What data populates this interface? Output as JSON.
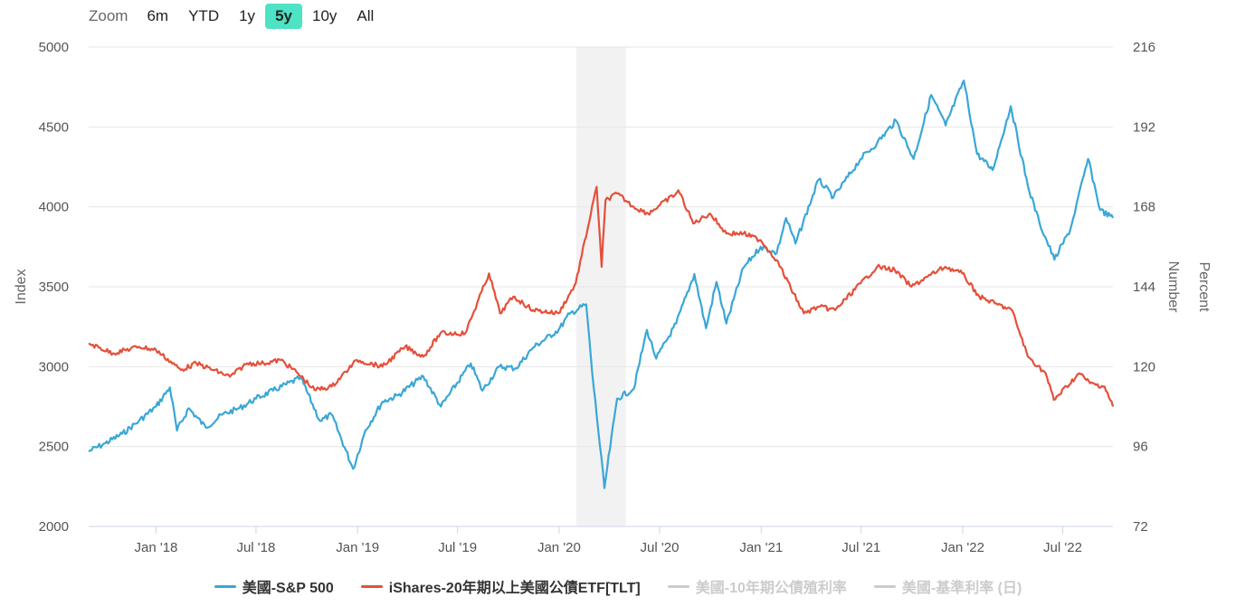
{
  "zoom": {
    "label": "Zoom",
    "buttons": [
      "6m",
      "YTD",
      "1y",
      "5y",
      "10y",
      "All"
    ],
    "active": "5y"
  },
  "chart_data": {
    "type": "line",
    "x_range": [
      "2017-09-01",
      "2022-09-30"
    ],
    "x_ticks": [
      "Jan '18",
      "Jul '18",
      "Jan '19",
      "Jul '19",
      "Jan '20",
      "Jul '20",
      "Jan '21",
      "Jul '21",
      "Jan '22",
      "Jul '22"
    ],
    "left_axis": {
      "label": "Index",
      "min": 2000,
      "max": 5000,
      "ticks": [
        "2000",
        "2500",
        "3000",
        "3500",
        "4000",
        "4500",
        "5000"
      ]
    },
    "right_axis": {
      "label": "Number",
      "min": 72,
      "max": 216,
      "ticks": [
        "72",
        "96",
        "120",
        "144",
        "168",
        "192",
        "216"
      ]
    },
    "right_axis_outer_label": "Percent",
    "shaded_band": {
      "from": "2020-02-01",
      "to": "2020-05-01"
    },
    "grid": "horizontal",
    "legend_position": "bottom-center",
    "series": [
      {
        "name": "美國-S&P 500",
        "axis": "left",
        "color": "#3aa7d6",
        "visible": true,
        "points": [
          [
            "2017-09-01",
            2470
          ],
          [
            "2017-10-01",
            2520
          ],
          [
            "2017-11-01",
            2580
          ],
          [
            "2017-12-01",
            2660
          ],
          [
            "2018-01-01",
            2750
          ],
          [
            "2018-01-26",
            2870
          ],
          [
            "2018-02-08",
            2600
          ],
          [
            "2018-03-01",
            2740
          ],
          [
            "2018-04-01",
            2620
          ],
          [
            "2018-05-01",
            2700
          ],
          [
            "2018-06-01",
            2740
          ],
          [
            "2018-07-01",
            2800
          ],
          [
            "2018-08-01",
            2850
          ],
          [
            "2018-09-20",
            2930
          ],
          [
            "2018-10-25",
            2660
          ],
          [
            "2018-11-15",
            2700
          ],
          [
            "2018-12-24",
            2360
          ],
          [
            "2019-01-15",
            2600
          ],
          [
            "2019-02-15",
            2780
          ],
          [
            "2019-03-15",
            2820
          ],
          [
            "2019-04-30",
            2940
          ],
          [
            "2019-06-01",
            2750
          ],
          [
            "2019-07-25",
            3020
          ],
          [
            "2019-08-15",
            2850
          ],
          [
            "2019-09-15",
            3000
          ],
          [
            "2019-10-15",
            2990
          ],
          [
            "2019-11-15",
            3120
          ],
          [
            "2019-12-31",
            3230
          ],
          [
            "2020-01-20",
            3330
          ],
          [
            "2020-02-19",
            3390
          ],
          [
            "2020-03-01",
            2960
          ],
          [
            "2020-03-23",
            2240
          ],
          [
            "2020-04-15",
            2800
          ],
          [
            "2020-05-15",
            2860
          ],
          [
            "2020-06-08",
            3230
          ],
          [
            "2020-06-25",
            3050
          ],
          [
            "2020-07-31",
            3270
          ],
          [
            "2020-09-02",
            3580
          ],
          [
            "2020-09-23",
            3240
          ],
          [
            "2020-10-12",
            3530
          ],
          [
            "2020-10-30",
            3270
          ],
          [
            "2020-11-30",
            3620
          ],
          [
            "2020-12-31",
            3750
          ],
          [
            "2021-01-29",
            3710
          ],
          [
            "2021-02-15",
            3930
          ],
          [
            "2021-03-04",
            3770
          ],
          [
            "2021-04-15",
            4170
          ],
          [
            "2021-05-12",
            4060
          ],
          [
            "2021-06-30",
            4300
          ],
          [
            "2021-07-30",
            4400
          ],
          [
            "2021-09-02",
            4540
          ],
          [
            "2021-10-04",
            4300
          ],
          [
            "2021-11-05",
            4700
          ],
          [
            "2021-12-01",
            4510
          ],
          [
            "2022-01-03",
            4790
          ],
          [
            "2022-01-27",
            4330
          ],
          [
            "2022-02-24",
            4230
          ],
          [
            "2022-03-29",
            4630
          ],
          [
            "2022-04-29",
            4130
          ],
          [
            "2022-05-20",
            3900
          ],
          [
            "2022-06-16",
            3670
          ],
          [
            "2022-07-15",
            3860
          ],
          [
            "2022-08-16",
            4300
          ],
          [
            "2022-09-07",
            3980
          ],
          [
            "2022-09-30",
            3930
          ]
        ]
      },
      {
        "name": "iShares-20年期以上美國公債ETF[TLT]",
        "axis": "right",
        "color": "#e4503b",
        "visible": true,
        "points": [
          [
            "2017-09-01",
            127
          ],
          [
            "2017-10-15",
            124
          ],
          [
            "2017-12-01",
            126
          ],
          [
            "2018-01-01",
            125
          ],
          [
            "2018-02-15",
            119
          ],
          [
            "2018-03-15",
            121
          ],
          [
            "2018-05-15",
            117
          ],
          [
            "2018-06-15",
            121
          ],
          [
            "2018-07-15",
            121
          ],
          [
            "2018-08-15",
            122
          ],
          [
            "2018-09-15",
            118
          ],
          [
            "2018-10-15",
            113
          ],
          [
            "2018-11-15",
            114
          ],
          [
            "2018-12-31",
            122
          ],
          [
            "2019-02-15",
            120
          ],
          [
            "2019-03-28",
            126
          ],
          [
            "2019-04-30",
            123
          ],
          [
            "2019-05-31",
            130
          ],
          [
            "2019-07-15",
            130
          ],
          [
            "2019-08-27",
            148
          ],
          [
            "2019-09-16",
            136
          ],
          [
            "2019-10-10",
            141
          ],
          [
            "2019-11-15",
            137
          ],
          [
            "2019-12-31",
            136
          ],
          [
            "2020-01-31",
            145
          ],
          [
            "2020-03-09",
            174
          ],
          [
            "2020-03-18",
            150
          ],
          [
            "2020-03-25",
            170
          ],
          [
            "2020-04-15",
            172
          ],
          [
            "2020-05-15",
            168
          ],
          [
            "2020-06-10",
            166
          ],
          [
            "2020-07-31",
            172
          ],
          [
            "2020-08-04",
            173
          ],
          [
            "2020-08-31",
            163
          ],
          [
            "2020-09-30",
            166
          ],
          [
            "2020-10-30",
            160
          ],
          [
            "2020-11-30",
            160
          ],
          [
            "2020-12-31",
            158
          ],
          [
            "2021-01-29",
            152
          ],
          [
            "2021-03-19",
            136
          ],
          [
            "2021-04-15",
            138
          ],
          [
            "2021-05-15",
            137
          ],
          [
            "2021-06-30",
            145
          ],
          [
            "2021-07-30",
            150
          ],
          [
            "2021-08-31",
            149
          ],
          [
            "2021-09-30",
            144
          ],
          [
            "2021-10-29",
            147
          ],
          [
            "2021-11-30",
            150
          ],
          [
            "2021-12-31",
            148
          ],
          [
            "2022-01-31",
            141
          ],
          [
            "2022-02-28",
            139
          ],
          [
            "2022-03-31",
            137
          ],
          [
            "2022-04-29",
            123
          ],
          [
            "2022-05-31",
            118
          ],
          [
            "2022-06-15",
            110
          ],
          [
            "2022-07-31",
            118
          ],
          [
            "2022-08-20",
            115
          ],
          [
            "2022-09-15",
            114
          ],
          [
            "2022-09-30",
            108
          ]
        ]
      },
      {
        "name": "美國-10年期公債殖利率",
        "axis": "right",
        "color": "#cccccc",
        "visible": false,
        "points": []
      },
      {
        "name": "美國-基準利率 (日)",
        "axis": "right",
        "color": "#cccccc",
        "visible": false,
        "points": []
      }
    ]
  }
}
